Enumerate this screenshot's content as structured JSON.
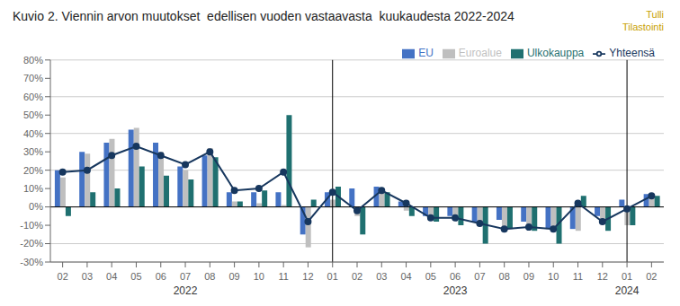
{
  "chart_data": {
    "type": "bar",
    "title": "Kuvio 2. Viennin arvon muutokset  edellisen vuoden vastaavasta  kuukaudesta 2022-2024",
    "annotations": [
      "Tulli\nTilastointi",
      "2022",
      "2023",
      "2024"
    ],
    "categories": [
      "02",
      "03",
      "04",
      "05",
      "06",
      "07",
      "08",
      "09",
      "10",
      "11",
      "12",
      "01",
      "02",
      "03",
      "04",
      "05",
      "06",
      "07",
      "08",
      "09",
      "10",
      "11",
      "12",
      "01",
      "02"
    ],
    "series": [
      {
        "name": "EU",
        "type": "bar",
        "color": "#4472C4",
        "values": [
          20,
          30,
          35,
          42,
          35,
          22,
          28,
          8,
          8,
          8,
          -15,
          8,
          10,
          11,
          3,
          -5,
          -5,
          -8,
          -7,
          -8,
          -12,
          -12,
          -5,
          4,
          7
        ]
      },
      {
        "name": "Euroalue",
        "type": "bar",
        "color": "#BFBFBF",
        "values": [
          16,
          29,
          37,
          43,
          30,
          20,
          32,
          3,
          2,
          1,
          -22,
          4,
          -5,
          9,
          -2,
          -7,
          -7,
          -8,
          -11,
          -12,
          -12,
          -13,
          -7,
          -10,
          5
        ]
      },
      {
        "name": "Ulkokauppa",
        "type": "bar",
        "color": "#1F7070",
        "values": [
          -5,
          8,
          10,
          22,
          17,
          15,
          27,
          3,
          9,
          50,
          4,
          11,
          -15,
          8,
          -5,
          -8,
          -10,
          -20,
          -12,
          -13,
          -20,
          6,
          -13,
          -10,
          6
        ]
      },
      {
        "name": "Yhteensä",
        "type": "line",
        "color": "#17375E",
        "marker": "circle",
        "values": [
          19,
          20,
          28,
          33,
          28,
          23,
          30,
          9,
          10,
          19,
          -8,
          8,
          -2,
          9,
          2,
          -6,
          -6,
          -9,
          -12,
          -11,
          -12,
          2,
          -8,
          -1,
          6
        ]
      }
    ],
    "ylim": [
      -30,
      80
    ],
    "yticks": [
      {
        "value": -30,
        "label": "-30%"
      },
      {
        "value": -20,
        "label": "-20%"
      },
      {
        "value": -10,
        "label": "-10%"
      },
      {
        "value": 0,
        "label": "0%"
      },
      {
        "value": 10,
        "label": "10%"
      },
      {
        "value": 20,
        "label": "20%"
      },
      {
        "value": 30,
        "label": "30%"
      },
      {
        "value": 40,
        "label": "40%"
      },
      {
        "value": 50,
        "label": "50%"
      },
      {
        "value": 60,
        "label": "60%"
      },
      {
        "value": 70,
        "label": "70%"
      },
      {
        "value": 80,
        "label": "80%"
      }
    ],
    "grid": true,
    "legend": "upper right"
  }
}
